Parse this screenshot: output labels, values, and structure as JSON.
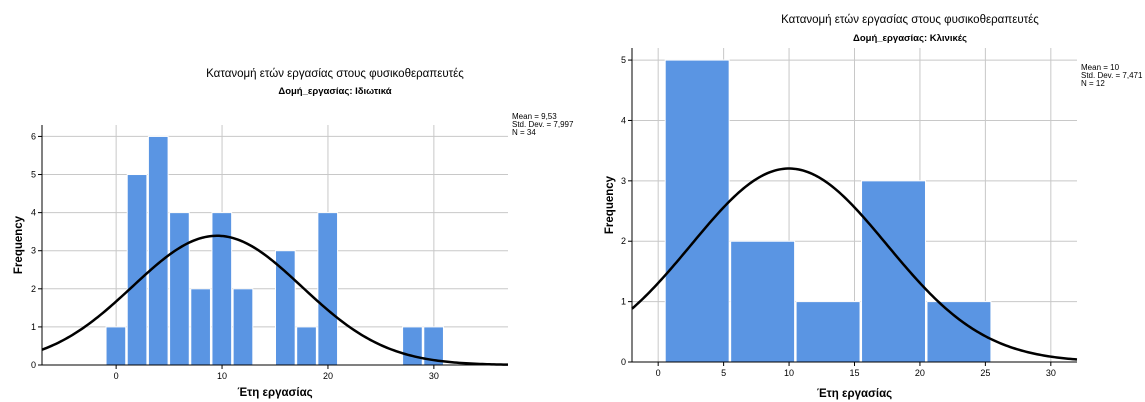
{
  "chart_data": [
    {
      "type": "bar",
      "title": "Κατανομή ετών εργασίας στους φυσικοθεραπευτές",
      "subtitle": "Δομή_εργασίας: Ιδιωτικά",
      "xlabel": "Έτη εργασίας",
      "ylabel": "Frequency",
      "xlim": [
        -7,
        37
      ],
      "ylim": [
        0,
        6.3
      ],
      "xticks": [
        0,
        10,
        20,
        30
      ],
      "yticks": [
        0,
        1,
        2,
        3,
        4,
        5,
        6
      ],
      "grid": true,
      "bins": [
        {
          "start": -1,
          "end": 1,
          "value": 1
        },
        {
          "start": 1,
          "end": 3,
          "value": 5
        },
        {
          "start": 3,
          "end": 5,
          "value": 6
        },
        {
          "start": 5,
          "end": 7,
          "value": 4
        },
        {
          "start": 7,
          "end": 9,
          "value": 2
        },
        {
          "start": 9,
          "end": 11,
          "value": 4
        },
        {
          "start": 11,
          "end": 13,
          "value": 2
        },
        {
          "start": 15,
          "end": 17,
          "value": 3
        },
        {
          "start": 17,
          "end": 19,
          "value": 1
        },
        {
          "start": 19,
          "end": 21,
          "value": 4
        },
        {
          "start": 27,
          "end": 29,
          "value": 1
        },
        {
          "start": 29,
          "end": 31,
          "value": 1
        }
      ],
      "normal_curve": {
        "mean": 9.53,
        "sd": 7.997,
        "n": 34,
        "bin_width": 2
      },
      "stats": [
        "Mean = 9,53",
        "Std. Dev. = 7,997",
        "N = 34"
      ],
      "bar_color": "#5a95e3",
      "legend_position": "top-right"
    },
    {
      "type": "bar",
      "title": "Κατανομή ετών εργασίας στους φυσικοθεραπευτές",
      "subtitle": "Δομή_εργασίας: Κλινικές",
      "xlabel": "Έτη εργασίας",
      "ylabel": "Frequency",
      "xlim": [
        -2,
        32
      ],
      "ylim": [
        0,
        5.2
      ],
      "xticks": [
        0,
        5,
        10,
        15,
        20,
        25,
        30
      ],
      "yticks": [
        0,
        1,
        2,
        3,
        4,
        5
      ],
      "grid": true,
      "bins": [
        {
          "start": 0.5,
          "end": 5.5,
          "value": 5
        },
        {
          "start": 5.5,
          "end": 10.5,
          "value": 2
        },
        {
          "start": 10.5,
          "end": 15.5,
          "value": 1
        },
        {
          "start": 15.5,
          "end": 20.5,
          "value": 3
        },
        {
          "start": 20.5,
          "end": 25.5,
          "value": 1
        }
      ],
      "normal_curve": {
        "mean": 10,
        "sd": 7.471,
        "n": 12,
        "bin_width": 5
      },
      "stats": [
        "Mean = 10",
        "Std. Dev. = 7,471",
        "N = 12"
      ],
      "bar_color": "#5a95e3",
      "legend_position": "top-right"
    }
  ]
}
